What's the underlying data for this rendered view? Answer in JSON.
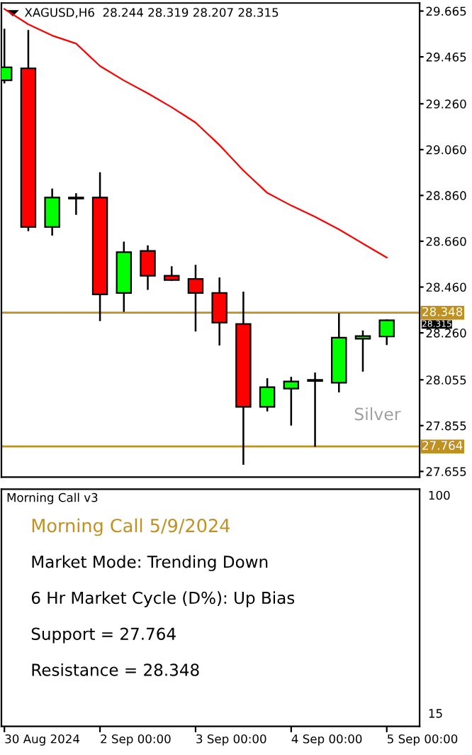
{
  "chart_data": [
    {
      "type": "candlestick",
      "title": "XAGUSD,H6  28.244 28.319 28.207 28.315",
      "categories": [
        null,
        null,
        null,
        null,
        null,
        null,
        null,
        null,
        null,
        null,
        null,
        null,
        null,
        null,
        null,
        null,
        null
      ],
      "ohlc": [
        [
          29.363,
          29.588,
          29.349,
          29.419
        ],
        [
          29.415,
          29.582,
          28.704,
          28.722
        ],
        [
          28.722,
          28.89,
          28.685,
          28.851
        ],
        [
          28.851,
          28.87,
          28.775,
          28.846
        ],
        [
          28.851,
          28.961,
          28.311,
          28.428
        ],
        [
          28.434,
          28.658,
          28.352,
          28.612
        ],
        [
          28.618,
          28.642,
          28.448,
          28.509
        ],
        [
          28.509,
          28.551,
          28.487,
          28.491
        ],
        [
          28.495,
          28.557,
          28.266,
          28.434
        ],
        [
          28.434,
          28.502,
          28.205,
          28.305
        ],
        [
          28.299,
          28.44,
          27.684,
          27.937
        ],
        [
          27.937,
          28.062,
          27.917,
          28.023
        ],
        [
          28.017,
          28.068,
          27.855,
          28.048
        ],
        [
          28.05,
          28.087,
          27.763,
          28.055
        ],
        [
          28.042,
          28.346,
          28.0,
          28.239
        ],
        [
          28.234,
          28.27,
          28.091,
          28.246
        ],
        [
          28.244,
          28.319,
          28.207,
          28.315
        ]
      ],
      "colors": [
        "#00ff00",
        "#ff0000",
        "#00ff00",
        "#00ff00",
        "#ff0000",
        "#00ff00",
        "#ff0000",
        "#ff0000",
        "#ff0000",
        "#ff0000",
        "#ff0000",
        "#00ff00",
        "#00ff00",
        "#00ff00",
        "#00ff00",
        "#00ff00",
        "#00ff00"
      ],
      "series": [
        {
          "type": "line",
          "color": "#ff0000",
          "values": [
            29.674,
            29.607,
            29.558,
            29.523,
            29.425,
            29.362,
            29.306,
            29.245,
            29.178,
            29.08,
            28.969,
            28.871,
            28.816,
            28.767,
            28.712,
            28.65,
            28.589
          ]
        }
      ],
      "ylim": [
        27.63,
        29.7
      ],
      "yticks": [
        29.665,
        29.465,
        {
          "value": 29.26,
          "label": "29.260"
        },
        {
          "value": 29.06,
          "label": "29.060"
        },
        {
          "value": 28.86,
          "label": "28.860"
        },
        {
          "value": 28.66,
          "label": "28.660"
        },
        {
          "value": 28.46,
          "label": "28.460"
        },
        {
          "value": 28.26,
          "label": "28.260"
        },
        28.055,
        27.855,
        27.655
      ],
      "ref_lines": [
        {
          "axis": "y",
          "value": 28.348,
          "label": "28.348",
          "color": "#c09020"
        },
        {
          "axis": "y",
          "value": 27.764,
          "label": "27.764",
          "color": "#c09020"
        }
      ],
      "annotations": [
        "28.315",
        "Silver"
      ],
      "tick_labels": "y"
    },
    {
      "type": "other",
      "title": "Morning Call v3",
      "categories": [
        "30 Aug 2024",
        null,
        null,
        null,
        "2 Sep 00:00",
        null,
        null,
        null,
        "3 Sep 00:00",
        null,
        null,
        null,
        "4 Sep 00:00",
        null,
        null,
        null,
        "5 Sep 00:00"
      ],
      "annotations": [
        "Morning Call 5/9/2024",
        "Market Mode: Trending Down",
        "6 Hr Market Cycle (D%): Up Bias",
        "Support = 27.764",
        "Resistance = 28.348",
        "100",
        "15"
      ]
    }
  ]
}
